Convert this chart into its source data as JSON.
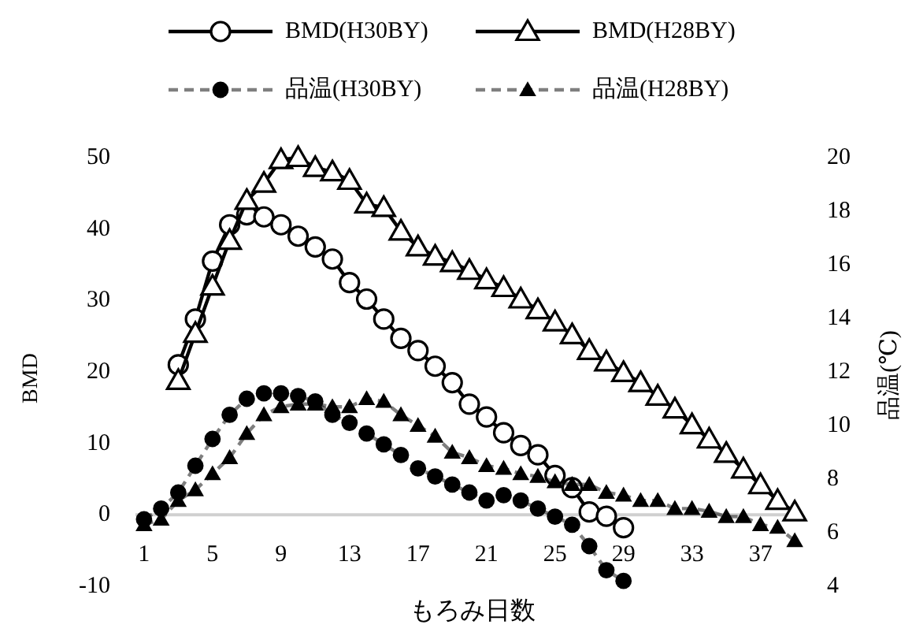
{
  "chart_data": {
    "type": "line",
    "xlabel": "もろみ日数",
    "ylabel": "BMD",
    "y2label": "品温(℃)",
    "xlim": [
      0.5,
      39.5
    ],
    "xticks": [
      1,
      5,
      9,
      13,
      17,
      21,
      25,
      29,
      33,
      37
    ],
    "ylim": [
      -10,
      50
    ],
    "yticks": [
      -10,
      0,
      10,
      20,
      30,
      40,
      50
    ],
    "y2lim": [
      4,
      20
    ],
    "y2ticks": [
      4,
      6,
      8,
      10,
      12,
      14,
      16,
      18,
      20
    ],
    "grid": false,
    "legend": "top",
    "series": [
      {
        "name": "BMD(H30BY)",
        "color": "#000000",
        "marker": "circle",
        "line_style": "solid",
        "x": [
          3,
          4,
          5,
          6,
          7,
          8,
          9,
          10,
          11,
          12,
          13,
          14,
          15,
          16,
          17,
          18,
          19,
          20,
          21,
          22,
          23,
          24,
          25,
          26,
          27,
          28,
          29
        ],
        "values": [
          21,
          27.4,
          35.5,
          40.6,
          42,
          41.7,
          40.6,
          39,
          37.5,
          35.8,
          32.5,
          30.2,
          27.4,
          24.7,
          23,
          20.8,
          18.5,
          15.5,
          13.7,
          11.5,
          9.7,
          8.4,
          5.5,
          3.8,
          0.4,
          -0.2,
          -1.8
        ]
      },
      {
        "name": "BMD(H28BY)",
        "color": "#000000",
        "marker": "triangle",
        "line_style": "solid",
        "x": [
          3,
          4,
          5,
          6,
          7,
          8,
          9,
          10,
          11,
          12,
          13,
          14,
          15,
          16,
          17,
          18,
          19,
          20,
          21,
          22,
          23,
          24,
          25,
          26,
          27,
          28,
          29,
          30,
          31,
          32,
          33,
          34,
          35,
          36,
          37,
          38,
          39
        ],
        "values": [
          18.8,
          25.4,
          32,
          38.4,
          44,
          46.4,
          49.7,
          50,
          48.6,
          48,
          46.8,
          43.5,
          43,
          39.7,
          37.5,
          36.2,
          35.3,
          34.2,
          32.9,
          31.8,
          30.2,
          28.7,
          27,
          25.2,
          23,
          21.4,
          19.9,
          18.5,
          16.6,
          14.8,
          12.6,
          10.6,
          8.6,
          6.4,
          4.2,
          2,
          0.4
        ]
      },
      {
        "name": "品温(H30BY)",
        "color": "#000000",
        "marker": "circle",
        "line_style": "dashed",
        "axis": "y2",
        "x": [
          1,
          2,
          3,
          4,
          5,
          6,
          7,
          8,
          9,
          10,
          11,
          12,
          13,
          14,
          15,
          16,
          17,
          18,
          19,
          20,
          21,
          22,
          23,
          24,
          25,
          26,
          27,
          28,
          29
        ],
        "values": [
          6.5,
          6.9,
          7.5,
          8.5,
          9.5,
          10.4,
          11,
          11.2,
          11.2,
          11.1,
          10.9,
          10.4,
          10.1,
          9.7,
          9.3,
          8.9,
          8.4,
          8.1,
          7.8,
          7.5,
          7.2,
          7.4,
          7.2,
          6.9,
          6.6,
          6.3,
          5.5,
          4.6,
          4.2
        ]
      },
      {
        "name": "品温(H28BY)",
        "color": "#000000",
        "marker": "triangle",
        "line_style": "dashed",
        "axis": "y2",
        "x": [
          1,
          2,
          3,
          4,
          5,
          6,
          7,
          8,
          9,
          10,
          11,
          12,
          13,
          14,
          15,
          16,
          17,
          18,
          19,
          20,
          21,
          22,
          23,
          24,
          25,
          26,
          27,
          28,
          29,
          30,
          31,
          32,
          33,
          34,
          35,
          36,
          37,
          38,
          39
        ],
        "values": [
          6.3,
          6.5,
          7.2,
          7.6,
          8.2,
          8.8,
          9.7,
          10.4,
          10.7,
          10.8,
          10.8,
          10.7,
          10.7,
          11,
          10.9,
          10.4,
          10,
          9.6,
          9,
          8.8,
          8.5,
          8.4,
          8.2,
          8.1,
          7.9,
          7.8,
          7.8,
          7.5,
          7.4,
          7.2,
          7.2,
          6.9,
          6.9,
          6.8,
          6.6,
          6.6,
          6.3,
          6.2,
          5.7
        ]
      }
    ]
  }
}
